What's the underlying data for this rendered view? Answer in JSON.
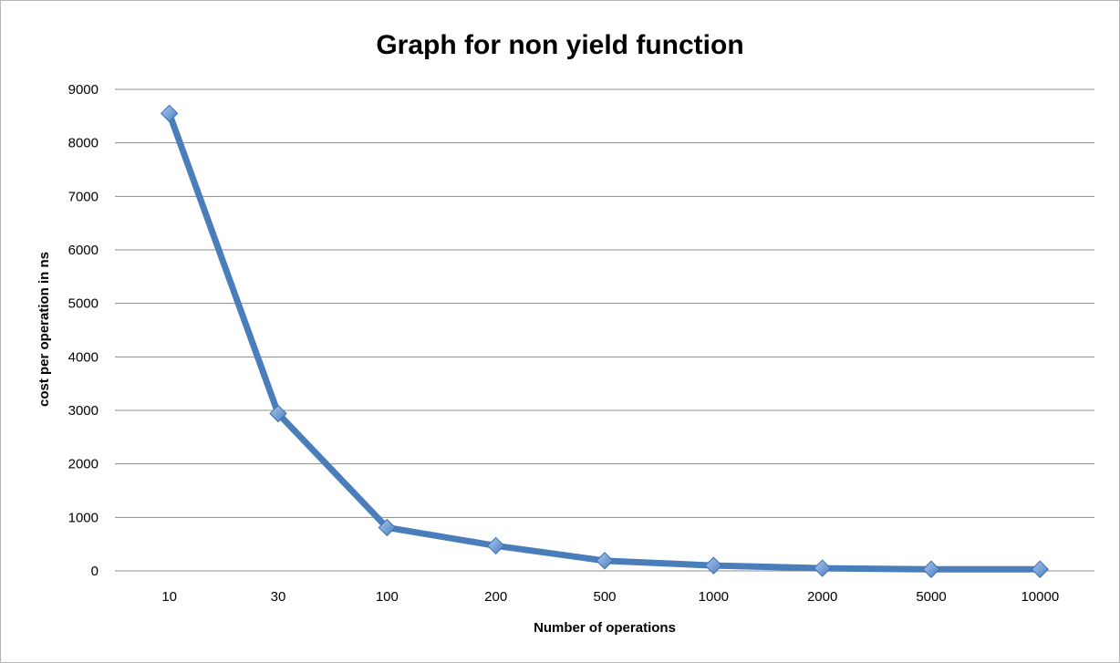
{
  "chart_data": {
    "type": "line",
    "title": "Graph for non yield function",
    "xlabel": "Number of operations",
    "ylabel": "cost per operation in ns",
    "categories": [
      "10",
      "30",
      "100",
      "200",
      "500",
      "1000",
      "2000",
      "5000",
      "10000"
    ],
    "series": [
      {
        "values": [
          8550,
          2940,
          810,
          470,
          190,
          100,
          50,
          30,
          30
        ]
      }
    ],
    "ylim": [
      0,
      9000
    ],
    "yticks": [
      "0",
      "1000",
      "2000",
      "3000",
      "4000",
      "5000",
      "6000",
      "7000",
      "8000",
      "9000"
    ],
    "grid": true,
    "legend": "none",
    "line_color": "#4a7ebb",
    "marker": "diamond",
    "marker_color": "#6f9fe0"
  }
}
